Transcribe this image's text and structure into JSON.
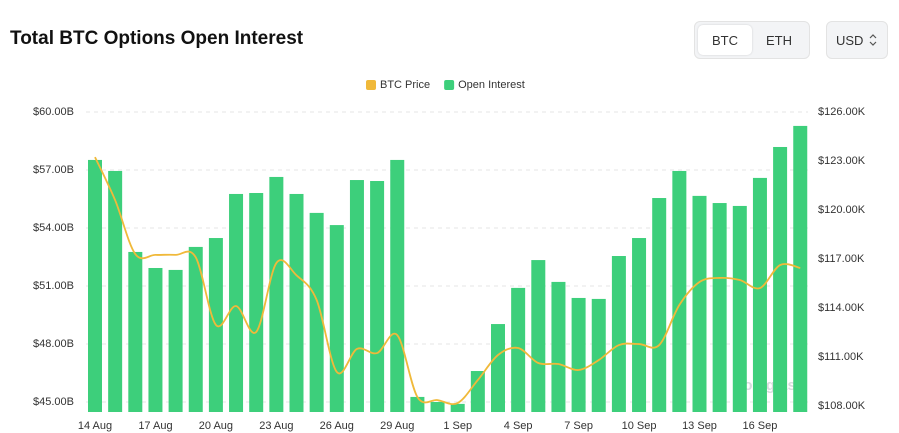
{
  "controls": {
    "coins": [
      "BTC",
      "ETH"
    ],
    "currency": "USD"
  },
  "chart_data": {
    "type": "bar",
    "title": "Total BTC Options Open Interest",
    "watermark": "coinglass",
    "categories": [
      "14 Aug",
      null,
      null,
      "17 Aug",
      null,
      null,
      "20 Aug",
      null,
      null,
      "23 Aug",
      null,
      null,
      "26 Aug",
      null,
      null,
      "29 Aug",
      null,
      null,
      "1 Sep",
      null,
      null,
      "4 Sep",
      null,
      null,
      "7 Sep",
      null,
      null,
      "10 Sep",
      null,
      null,
      "13 Sep",
      null,
      null,
      "16 Sep",
      null,
      null
    ],
    "series": [
      {
        "name": "BTC Price",
        "type": "line",
        "axis": "y2",
        "color": "#f0b93a",
        "values": [
          123.24,
          120.6,
          117.3,
          117.25,
          117.25,
          117.1,
          112.96,
          114.12,
          112.53,
          116.75,
          116.0,
          114.49,
          110.08,
          111.49,
          111.24,
          112.34,
          108.55,
          108.36,
          108.18,
          109.59,
          111.12,
          111.55,
          110.63,
          110.57,
          110.2,
          110.81,
          111.73,
          111.79,
          111.73,
          114.18,
          115.59,
          115.84,
          115.71,
          115.22,
          116.63,
          116.45
        ]
      },
      {
        "name": "Open Interest",
        "type": "bar",
        "color": "#3dcf7b",
        "values": [
          57.52,
          56.95,
          52.76,
          51.93,
          51.83,
          53.02,
          53.48,
          55.76,
          55.81,
          56.64,
          55.76,
          54.78,
          54.15,
          56.48,
          56.43,
          57.52,
          45.26,
          45.0,
          44.9,
          46.6,
          49.03,
          50.9,
          52.34,
          51.21,
          50.38,
          50.33,
          52.55,
          53.48,
          55.55,
          56.95,
          55.66,
          55.29,
          55.14,
          56.59,
          58.19,
          59.28
        ]
      }
    ],
    "ylim": [
      44.48,
      60
    ],
    "yticks": [
      {
        "value": 45,
        "label": "$45.00B"
      },
      {
        "value": 48,
        "label": "$48.00B"
      },
      {
        "value": 51,
        "label": "$51.00B"
      },
      {
        "value": 54,
        "label": "$54.00B"
      },
      {
        "value": 57,
        "label": "$57.00B"
      },
      {
        "value": 60,
        "label": "$60.00B"
      }
    ],
    "y2lim": [
      107.63,
      126
    ],
    "y2ticks": [
      {
        "value": 108,
        "label": "$108.00K"
      },
      {
        "value": 111,
        "label": "$111.00K"
      },
      {
        "value": 114,
        "label": "$114.00K"
      },
      {
        "value": 117,
        "label": "$117.00K"
      },
      {
        "value": 120,
        "label": "$120.00K"
      },
      {
        "value": 123,
        "label": "$123.00K"
      },
      {
        "value": 126,
        "label": "$126.00K"
      }
    ],
    "grid": true,
    "legend": "top"
  }
}
